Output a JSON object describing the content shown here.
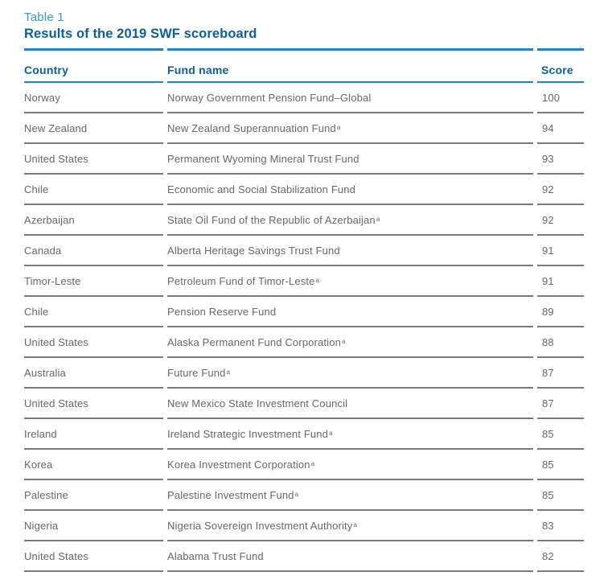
{
  "colors": {
    "accent_blue": "#2E9CD4",
    "heading_blue": "#0D5E9E",
    "rule_blue": "#2383C4",
    "rule_gray": "#7A7B7D",
    "row_text": "#66676A",
    "page_bg": "#FFFFFF"
  },
  "header": {
    "table_label": "Table 1",
    "title": "Results of the 2019 SWF scoreboard"
  },
  "table": {
    "columns": [
      {
        "key": "country",
        "label": "Country"
      },
      {
        "key": "fund",
        "label": "Fund name"
      },
      {
        "key": "score",
        "label": "Score"
      }
    ],
    "superscript_symbol": "a",
    "rows": [
      {
        "country": "Norway",
        "fund": "Norway Government Pension Fund–Global",
        "superscript": false,
        "score": "100"
      },
      {
        "country": "New Zealand",
        "fund": "New Zealand Superannuation Fund",
        "superscript": true,
        "score": "94"
      },
      {
        "country": "United States",
        "fund": "Permanent Wyoming Mineral Trust Fund",
        "superscript": false,
        "score": "93"
      },
      {
        "country": "Chile",
        "fund": "Economic and Social Stabilization Fund",
        "superscript": false,
        "score": "92"
      },
      {
        "country": "Azerbaijan",
        "fund": "State Oil Fund of the Republic of Azerbaijan",
        "superscript": true,
        "score": "92"
      },
      {
        "country": "Canada",
        "fund": "Alberta Heritage Savings Trust Fund",
        "superscript": false,
        "score": "91"
      },
      {
        "country": "Timor-Leste",
        "fund": "Petroleum Fund of Timor-Leste",
        "superscript": true,
        "score": "91"
      },
      {
        "country": "Chile",
        "fund": "Pension Reserve Fund",
        "superscript": false,
        "score": "89"
      },
      {
        "country": "United States",
        "fund": "Alaska Permanent Fund Corporation",
        "superscript": true,
        "score": "88"
      },
      {
        "country": "Australia",
        "fund": "Future Fund",
        "superscript": true,
        "score": "87"
      },
      {
        "country": "United States",
        "fund": "New Mexico State Investment Council",
        "superscript": false,
        "score": "87"
      },
      {
        "country": "Ireland",
        "fund": "Ireland Strategic Investment Fund",
        "superscript": true,
        "score": "85"
      },
      {
        "country": "Korea",
        "fund": "Korea Investment Corporation",
        "superscript": true,
        "score": "85"
      },
      {
        "country": "Palestine",
        "fund": "Palestine Investment Fund",
        "superscript": true,
        "score": "85"
      },
      {
        "country": "Nigeria",
        "fund": "Nigeria Sovereign Investment Authority",
        "superscript": true,
        "score": "83"
      },
      {
        "country": "United States",
        "fund": "Alabama Trust Fund",
        "superscript": false,
        "score": "82"
      }
    ]
  }
}
